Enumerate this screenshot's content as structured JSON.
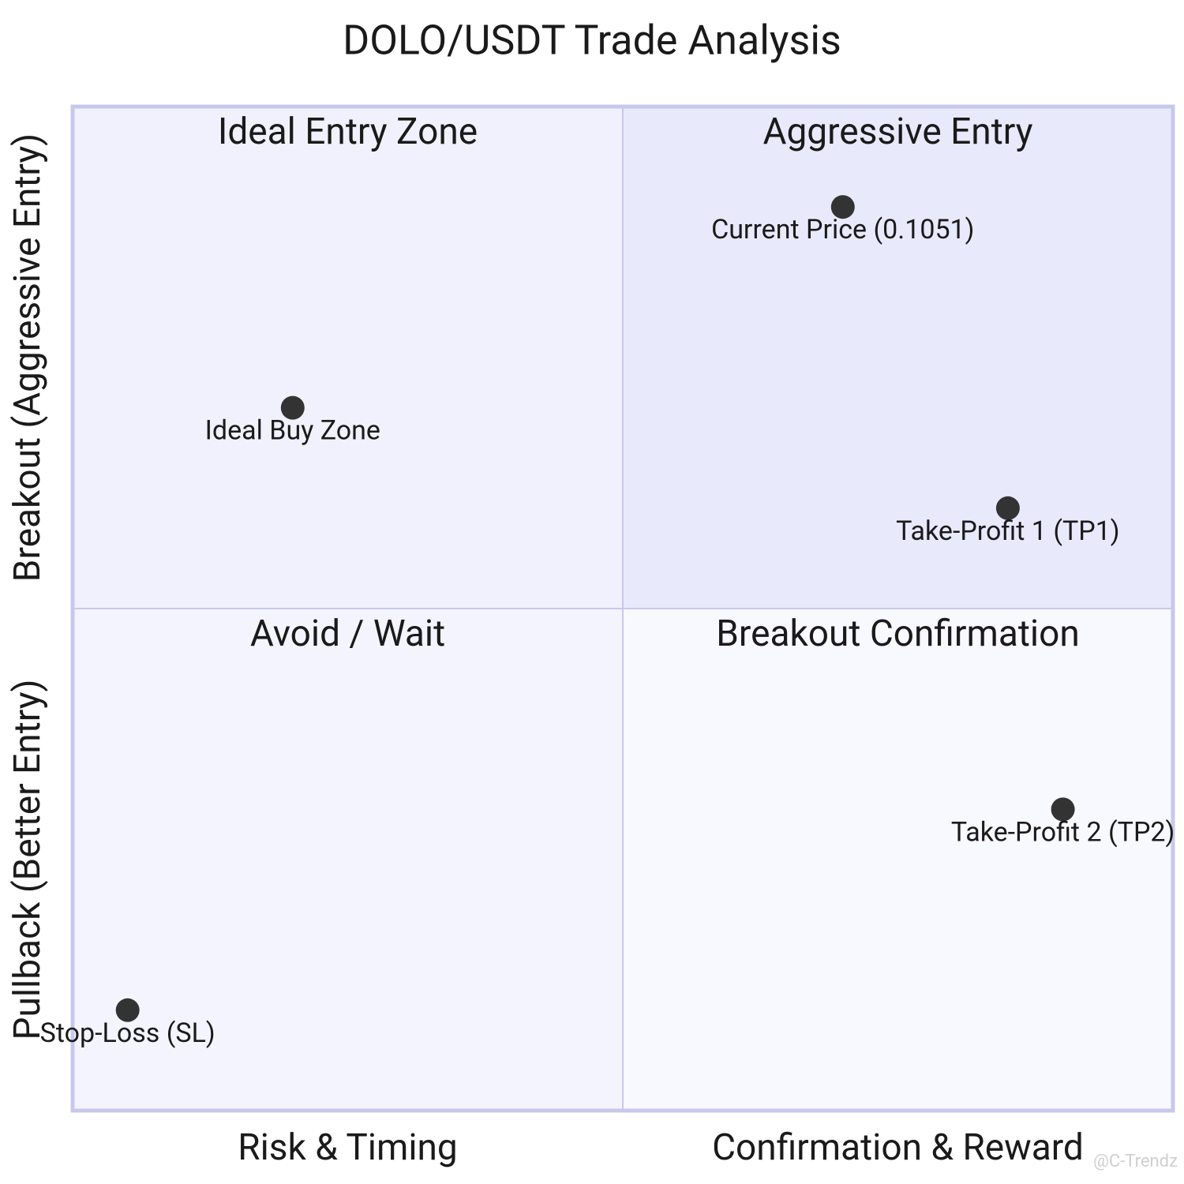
{
  "chart_data": {
    "type": "quadrant",
    "title": "DOLO/USDT Trade Analysis",
    "x_axis": {
      "left": "Risk & Timing",
      "right": "Confirmation & Reward"
    },
    "y_axis": {
      "bottom": "Pullback (Better Entry)",
      "top": "Breakout (Aggressive Entry)"
    },
    "quadrants": {
      "top_right": "Aggressive Entry",
      "top_left": "Ideal Entry Zone",
      "bottom_left": "Avoid / Wait",
      "bottom_right": "Breakout Confirmation"
    },
    "quadrant_colors": {
      "top_right": "#e9e9fc",
      "top_left": "#f1f1fd",
      "bottom_left": "#f4f4fe",
      "bottom_right": "#f8f8ff"
    },
    "xlim": [
      0,
      1
    ],
    "ylim": [
      0,
      1
    ],
    "point_color": "#333333",
    "points": [
      {
        "label": "Current Price (0.1051)",
        "x": 0.7,
        "y": 0.9
      },
      {
        "label": "Ideal Buy Zone",
        "x": 0.2,
        "y": 0.7
      },
      {
        "label": "Take-Profit 1 (TP1)",
        "x": 0.85,
        "y": 0.6
      },
      {
        "label": "Take-Profit 2 (TP2)",
        "x": 0.9,
        "y": 0.3
      },
      {
        "label": "Stop-Loss (SL)",
        "x": 0.05,
        "y": 0.1
      }
    ],
    "watermark": "@C-Trendz"
  }
}
